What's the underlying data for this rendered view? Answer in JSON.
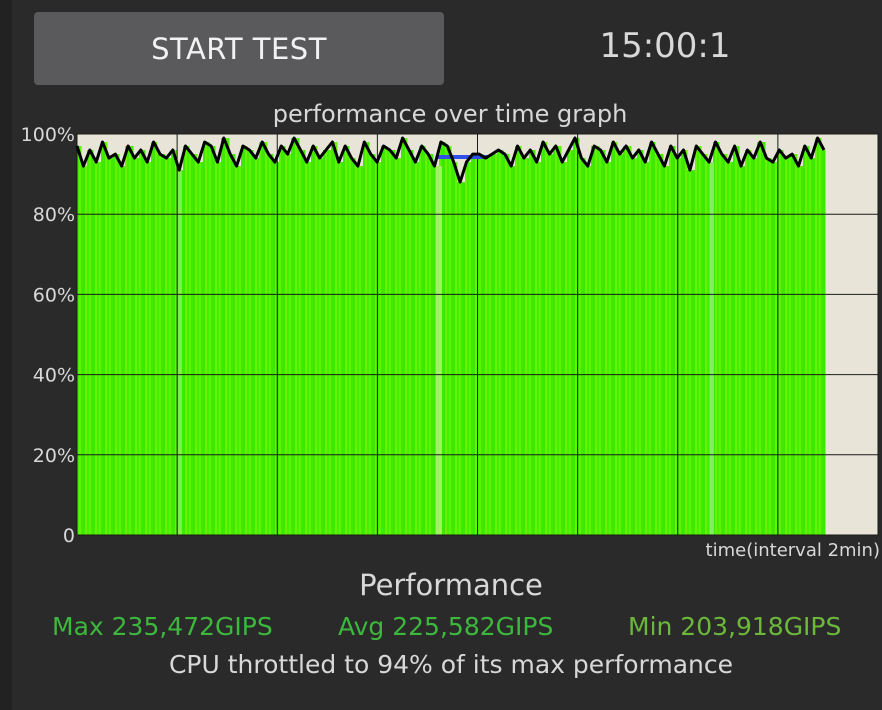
{
  "controls": {
    "start_button_label": "START TEST",
    "timer": "15:00:1"
  },
  "chart_data": {
    "type": "area",
    "title": "performance over time graph",
    "xlabel": "time(interval 2min)",
    "ylabel": "",
    "y_tick_labels": [
      "100%",
      "80%",
      "60%",
      "40%",
      "20%",
      "0"
    ],
    "ylim": [
      0,
      100
    ],
    "x_range_minutes": [
      0,
      16
    ],
    "x_interval_minutes": 2,
    "grid": true,
    "fill_color": "#44f000",
    "line_color": "#000000",
    "plot_background": "#e8e5d8",
    "series": [
      {
        "values": [
          97,
          92,
          96,
          93,
          98,
          94,
          95,
          92,
          97,
          94,
          96,
          93,
          98,
          95,
          94,
          96,
          91,
          97,
          95,
          93,
          98,
          97,
          93,
          99,
          95,
          92,
          97,
          96,
          94,
          98,
          95,
          93,
          97,
          95,
          99,
          96,
          93,
          97,
          94,
          96,
          98,
          93,
          97,
          94,
          92,
          98,
          95,
          93,
          97,
          96,
          94,
          99,
          96,
          93,
          97,
          95,
          92,
          98,
          97,
          93,
          88,
          93,
          95,
          95,
          94,
          95,
          96,
          95,
          92,
          97,
          94,
          96,
          93,
          98,
          95,
          97,
          93,
          96,
          99,
          94,
          92,
          97,
          96,
          93,
          98,
          95,
          97,
          94,
          96,
          93,
          98,
          95,
          92,
          97,
          94,
          96,
          91,
          97,
          95,
          93,
          98,
          95,
          93,
          97,
          92,
          96,
          94,
          98,
          94,
          93,
          96,
          94,
          95,
          92,
          97,
          94,
          99,
          96
        ]
      }
    ]
  },
  "performance": {
    "heading": "Performance",
    "max": "Max 235,472GIPS",
    "avg": "Avg 225,582GIPS",
    "min": "Min 203,918GIPS",
    "throttle_message": "CPU throttled to 94% of its max performance"
  }
}
